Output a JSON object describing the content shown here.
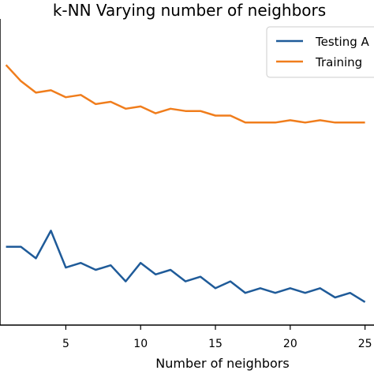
{
  "chart_data": {
    "type": "line",
    "title": "k-NN Varying number of neighbors",
    "xlabel": "Number of neighbors",
    "ylabel": "",
    "xlim": [
      0.6,
      25.6
    ],
    "ylim": [
      0.872,
      1.005
    ],
    "xticks": [
      5,
      10,
      15,
      20,
      25
    ],
    "xtick_labels": [
      "5",
      "10",
      "15",
      "20",
      "25"
    ],
    "grid": false,
    "legend_position": "top-right",
    "x": [
      1,
      2,
      3,
      4,
      5,
      6,
      7,
      8,
      9,
      10,
      11,
      12,
      13,
      14,
      15,
      16,
      17,
      18,
      19,
      20,
      21,
      22,
      23,
      24,
      25
    ],
    "series": [
      {
        "name": "Testing A",
        "color": "#1f5b99",
        "values": [
          0.906,
          0.906,
          0.901,
          0.913,
          0.897,
          0.899,
          0.896,
          0.898,
          0.891,
          0.899,
          0.894,
          0.896,
          0.891,
          0.893,
          0.888,
          0.891,
          0.886,
          0.888,
          0.886,
          0.888,
          0.886,
          0.888,
          0.884,
          0.886,
          0.882
        ]
      },
      {
        "name": "Training",
        "color": "#f07d1c",
        "values": [
          0.985,
          0.978,
          0.973,
          0.974,
          0.971,
          0.972,
          0.968,
          0.969,
          0.966,
          0.967,
          0.964,
          0.966,
          0.965,
          0.965,
          0.963,
          0.963,
          0.96,
          0.96,
          0.96,
          0.961,
          0.96,
          0.961,
          0.96,
          0.96,
          0.96
        ]
      }
    ]
  }
}
